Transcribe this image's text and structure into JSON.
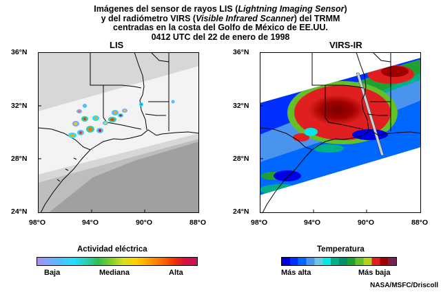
{
  "title": {
    "line1_pre": "Imágenes del sensor de rayos LIS (",
    "line1_em": "Lightning Imaging Sensor",
    "line1_post": ")",
    "line2_pre": "y del radiómetro VIRS (",
    "line2_em": "Visible Infrared Scanner",
    "line2_post": ") del TRMM",
    "line3": "centradas en la costa del Golfo de México de EE.UU.",
    "line4": "0412 UTC del 22 de enero de 1998"
  },
  "panels": {
    "left": {
      "label": "LIS",
      "lat_labels": [
        "36°N",
        "32°N",
        "28°N",
        "24°N"
      ],
      "lon_labels": [
        "98°O",
        "94°O",
        "90°O",
        "88°O"
      ]
    },
    "right": {
      "label": "VIRS-IR",
      "lat_labels": [
        "36°N",
        "32°N",
        "28°N",
        "24°N"
      ],
      "lon_labels": [
        "98°O",
        "94°O",
        "90°O",
        "88°O"
      ]
    }
  },
  "legends": {
    "lis": {
      "title": "Actividad eléctrica",
      "low": "Baja",
      "mid": "Mediana",
      "high": "Alta",
      "colors": [
        "#a88cf0",
        "#7aa8ff",
        "#49c2ff",
        "#1fe0ff",
        "#2ad0b0",
        "#2ec04c",
        "#7ed02a",
        "#d8e020",
        "#ffd000",
        "#ffa200",
        "#ff7200",
        "#f23a00",
        "#d8103a",
        "#c8105a"
      ]
    },
    "virs": {
      "title": "Temperatura",
      "low": "Más alta",
      "high": "Más baja",
      "colors": [
        "#0000e8",
        "#0030ff",
        "#0068ff",
        "#4a94f0",
        "#6ac8e0",
        "#00e8e8",
        "#00b088",
        "#00906a",
        "#20a030",
        "#64c028",
        "#b4d020",
        "#e02020",
        "#a00000",
        "#782050"
      ]
    }
  },
  "credit": "NASA/MSFC/Driscoll"
}
